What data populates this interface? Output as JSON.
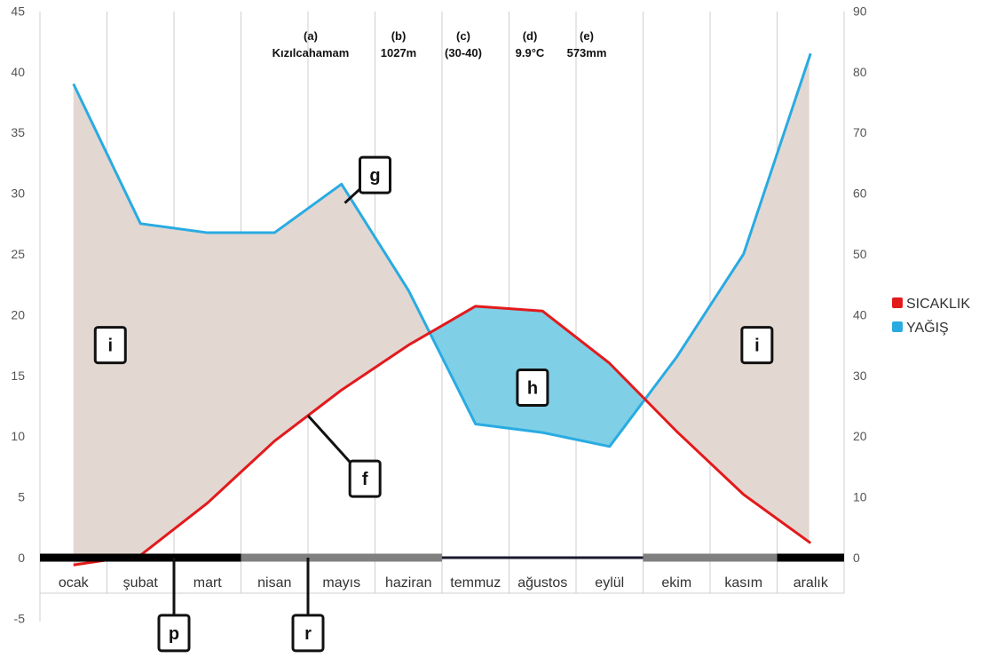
{
  "chart_data": {
    "type": "line",
    "title": "",
    "categories": [
      "ocak",
      "şubat",
      "mart",
      "nisan",
      "mayıs",
      "haziran",
      "temmuz",
      "ağustos",
      "eylül",
      "ekim",
      "kasım",
      "aralık"
    ],
    "y_left": {
      "ylim": [
        -5,
        45
      ],
      "ticks": [
        "-5",
        "0",
        "5",
        "10",
        "15",
        "20",
        "25",
        "30",
        "35",
        "40",
        "45"
      ]
    },
    "y_right": {
      "ylim": [
        -10,
        90
      ],
      "ticks": [
        "0",
        "10",
        "20",
        "30",
        "40",
        "50",
        "60",
        "70",
        "80",
        "90"
      ]
    },
    "series": [
      {
        "name": "SICAKLIK",
        "axis": "left",
        "color": "#e31a1c",
        "values": [
          -0.6,
          0.2,
          4.5,
          9.6,
          13.8,
          17.5,
          20.7,
          20.3,
          16.0,
          10.4,
          5.2,
          1.2
        ]
      },
      {
        "name": "YAĞIŞ",
        "axis": "right",
        "color": "#29abe2",
        "values": [
          78,
          55,
          53.5,
          53.5,
          61.5,
          44,
          22,
          20.6,
          18.3,
          33,
          50,
          83
        ]
      }
    ],
    "legend_position": "right",
    "grid": "vertical",
    "station_info": [
      {
        "label": "(a)",
        "value": "Kızılcahamam"
      },
      {
        "label": "(b)",
        "value": "1027m"
      },
      {
        "label": "(c)",
        "value": "(30-40)"
      },
      {
        "label": "(d)",
        "value": "9.9°C"
      },
      {
        "label": "(e)",
        "value": "573mm"
      }
    ],
    "season_bands": [
      {
        "from": 0,
        "to": 3,
        "color": "#000000"
      },
      {
        "from": 3,
        "to": 6,
        "color": "#808080"
      },
      {
        "from": 6,
        "to": 9,
        "color": "#1a1a2e"
      },
      {
        "from": 9,
        "to": 11,
        "color": "#808080"
      },
      {
        "from": 11,
        "to": 12,
        "color": "#000000"
      }
    ],
    "fill_colors": {
      "surplus": "#e3d7d2",
      "deficit": "#7fcfe6"
    },
    "annotations": [
      {
        "label": "i",
        "box_at": [
          1.05,
          17.5
        ]
      },
      {
        "label": "i",
        "box_at": [
          10.7,
          17.5
        ]
      },
      {
        "label": "h",
        "box_at": [
          7.35,
          14
        ]
      },
      {
        "label": "g",
        "box_at": [
          5.0,
          31.5
        ],
        "pointer_to": [
          4.55,
          29.2
        ]
      },
      {
        "label": "f",
        "box_at": [
          4.85,
          6.5
        ],
        "pointer_to": [
          4.0,
          11.7
        ]
      },
      {
        "label": "p",
        "box_at": [
          2.0,
          -6.2
        ],
        "pointer_to": [
          2.0,
          0
        ]
      },
      {
        "label": "r",
        "box_at": [
          4.0,
          -6.2
        ],
        "pointer_to": [
          4.0,
          0
        ]
      }
    ]
  }
}
